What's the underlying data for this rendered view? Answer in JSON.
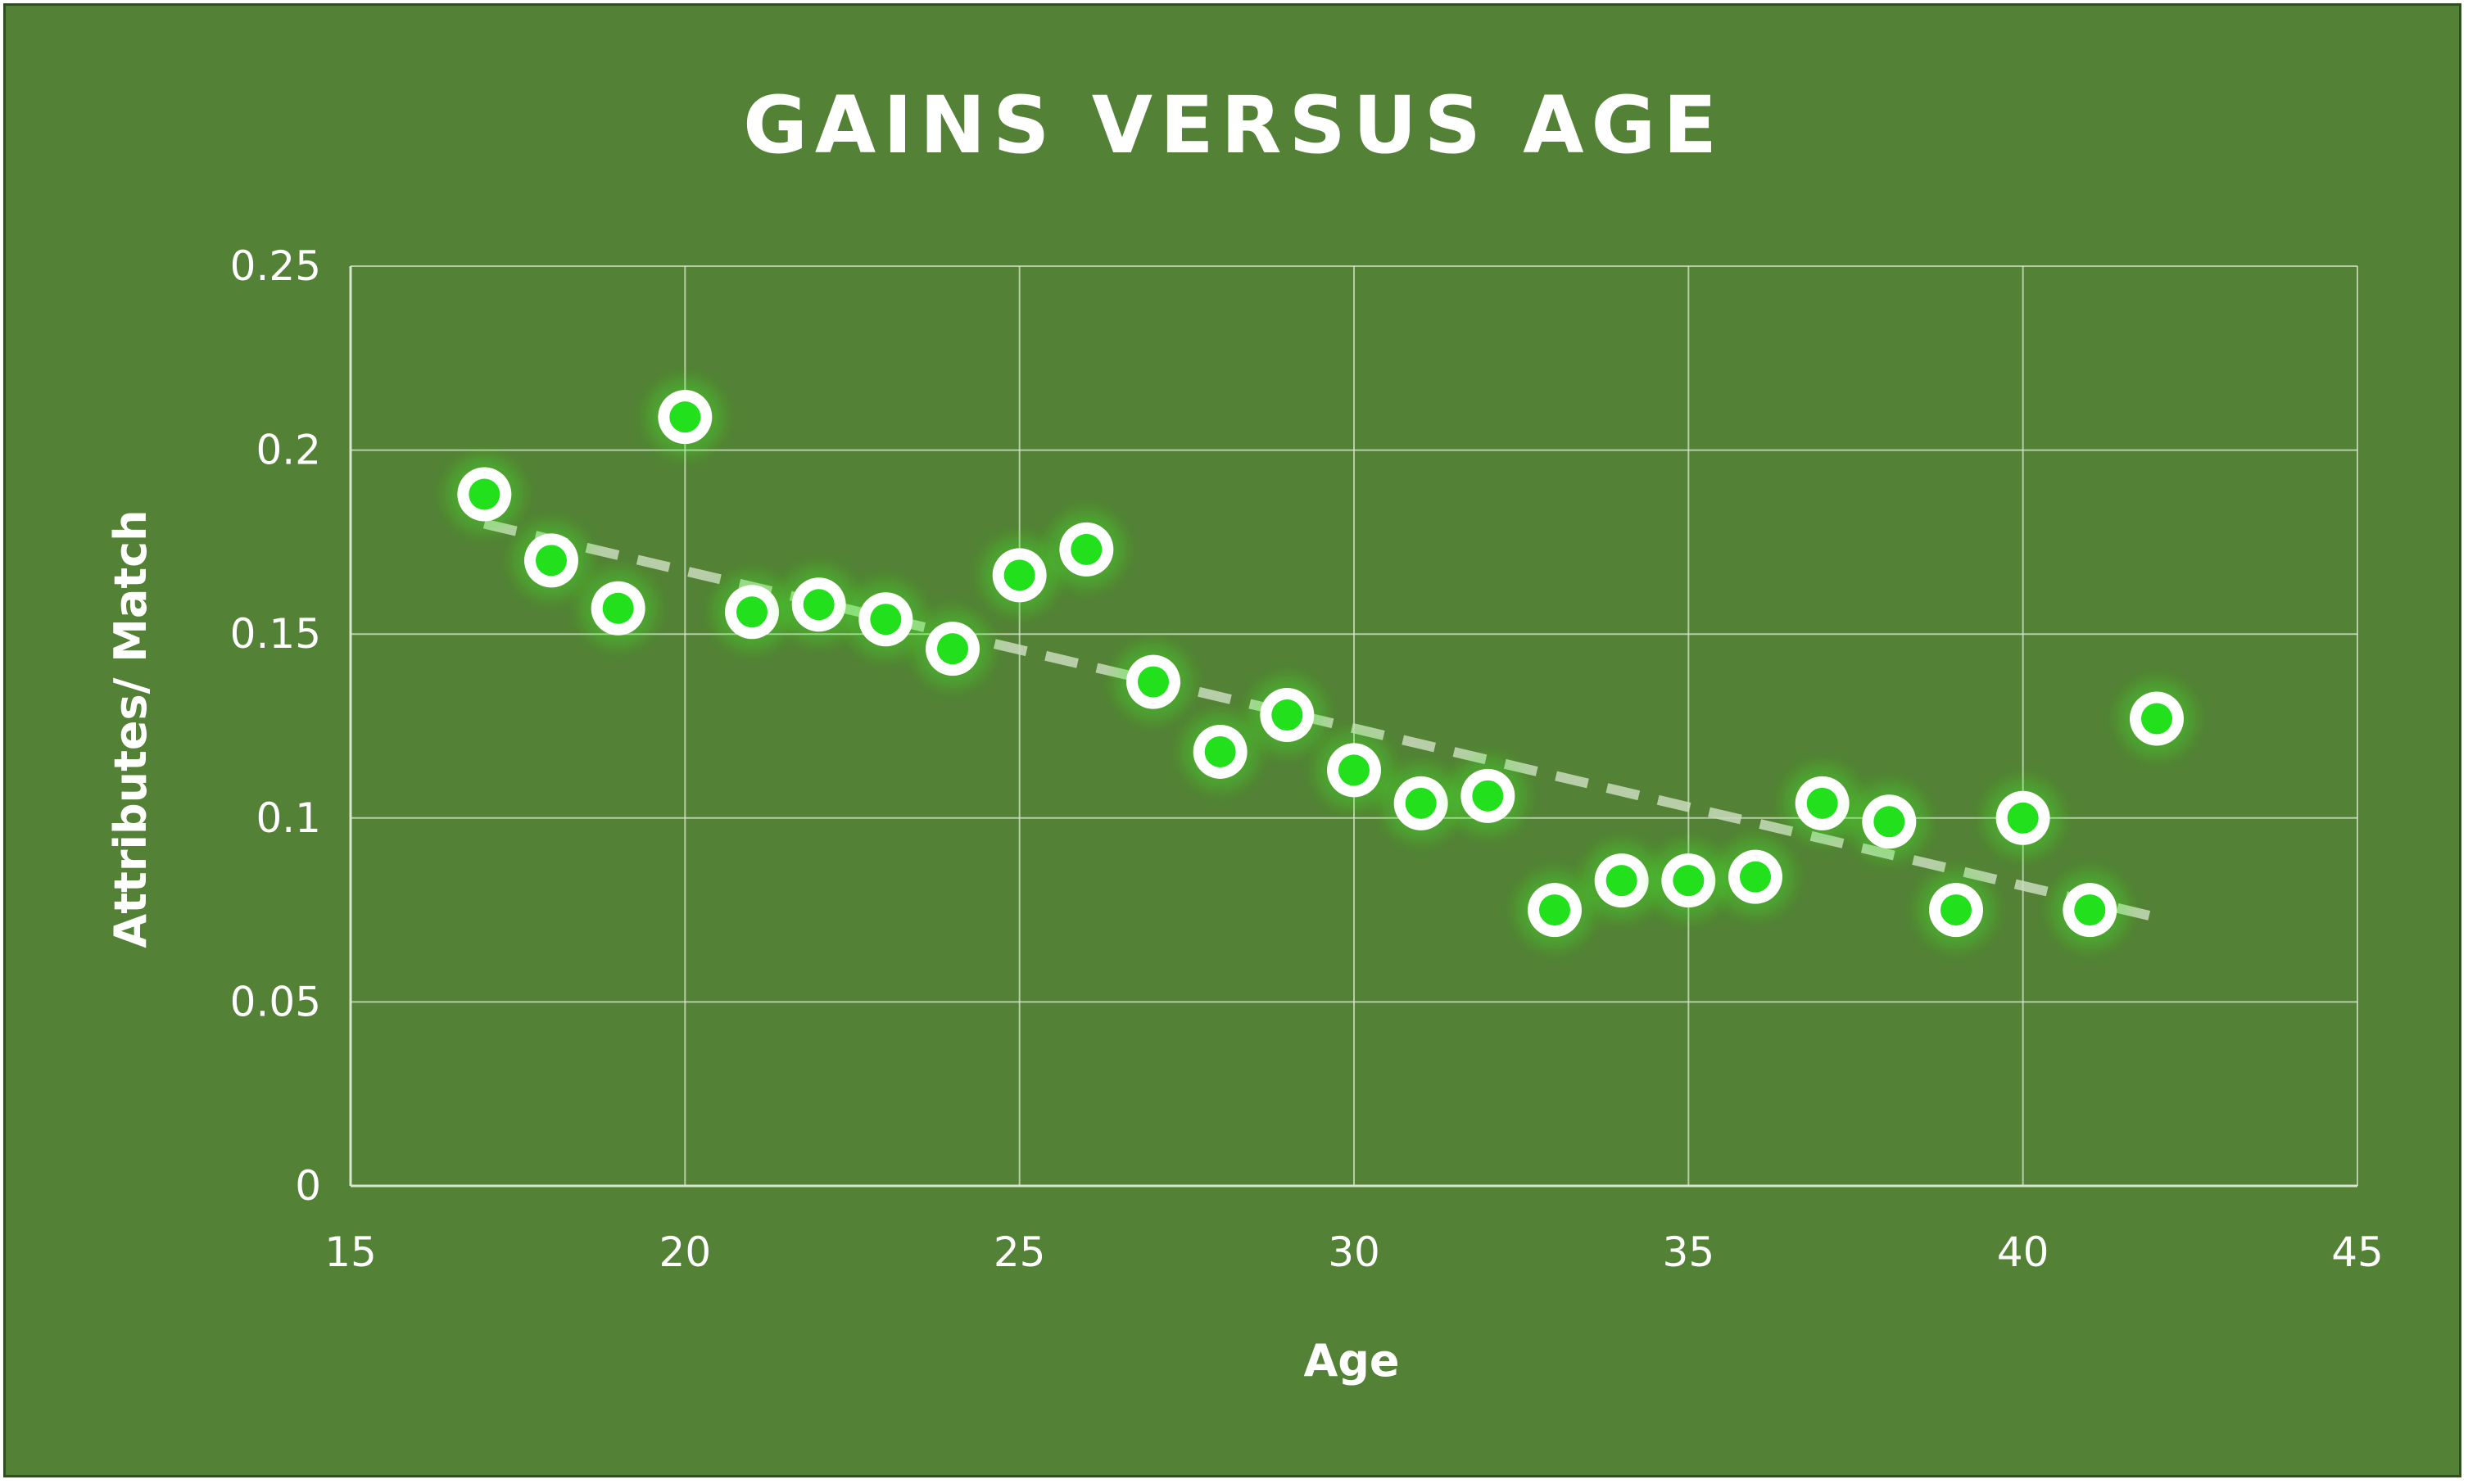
{
  "chart_data": {
    "type": "scatter",
    "title": "GAINS VERSUS AGE",
    "xlabel": "Age",
    "ylabel": "Attributes/ Match",
    "xlim": [
      15,
      45
    ],
    "ylim": [
      0,
      0.25
    ],
    "xticks": [
      "15",
      "20",
      "25",
      "30",
      "35",
      "40",
      "45"
    ],
    "yticks": [
      "0",
      "0.05",
      "0.1",
      "0.15",
      "0.2",
      "0.25"
    ],
    "grid": true,
    "legend": "none",
    "trendline": {
      "type": "linear",
      "x": [
        17,
        42
      ],
      "y": [
        0.18,
        0.073
      ]
    },
    "points": [
      {
        "x": 17,
        "y": 0.188
      },
      {
        "x": 18,
        "y": 0.17
      },
      {
        "x": 19,
        "y": 0.157
      },
      {
        "x": 20,
        "y": 0.209
      },
      {
        "x": 21,
        "y": 0.156
      },
      {
        "x": 22,
        "y": 0.158
      },
      {
        "x": 23,
        "y": 0.154
      },
      {
        "x": 24,
        "y": 0.146
      },
      {
        "x": 25,
        "y": 0.166
      },
      {
        "x": 26,
        "y": 0.173
      },
      {
        "x": 27,
        "y": 0.137
      },
      {
        "x": 28,
        "y": 0.118
      },
      {
        "x": 29,
        "y": 0.128
      },
      {
        "x": 30,
        "y": 0.113
      },
      {
        "x": 31,
        "y": 0.104
      },
      {
        "x": 32,
        "y": 0.106
      },
      {
        "x": 33,
        "y": 0.075
      },
      {
        "x": 34,
        "y": 0.083
      },
      {
        "x": 35,
        "y": 0.083
      },
      {
        "x": 36,
        "y": 0.084
      },
      {
        "x": 37,
        "y": 0.104
      },
      {
        "x": 38,
        "y": 0.099
      },
      {
        "x": 39,
        "y": 0.075
      },
      {
        "x": 40,
        "y": 0.1
      },
      {
        "x": 41,
        "y": 0.075
      },
      {
        "x": 42,
        "y": 0.127
      }
    ],
    "colors": {
      "background": "#538135",
      "marker_fill": "#22e01c",
      "marker_ring": "#ffffff",
      "trendline": "#c9dcbc",
      "text": "#ffffff"
    }
  }
}
